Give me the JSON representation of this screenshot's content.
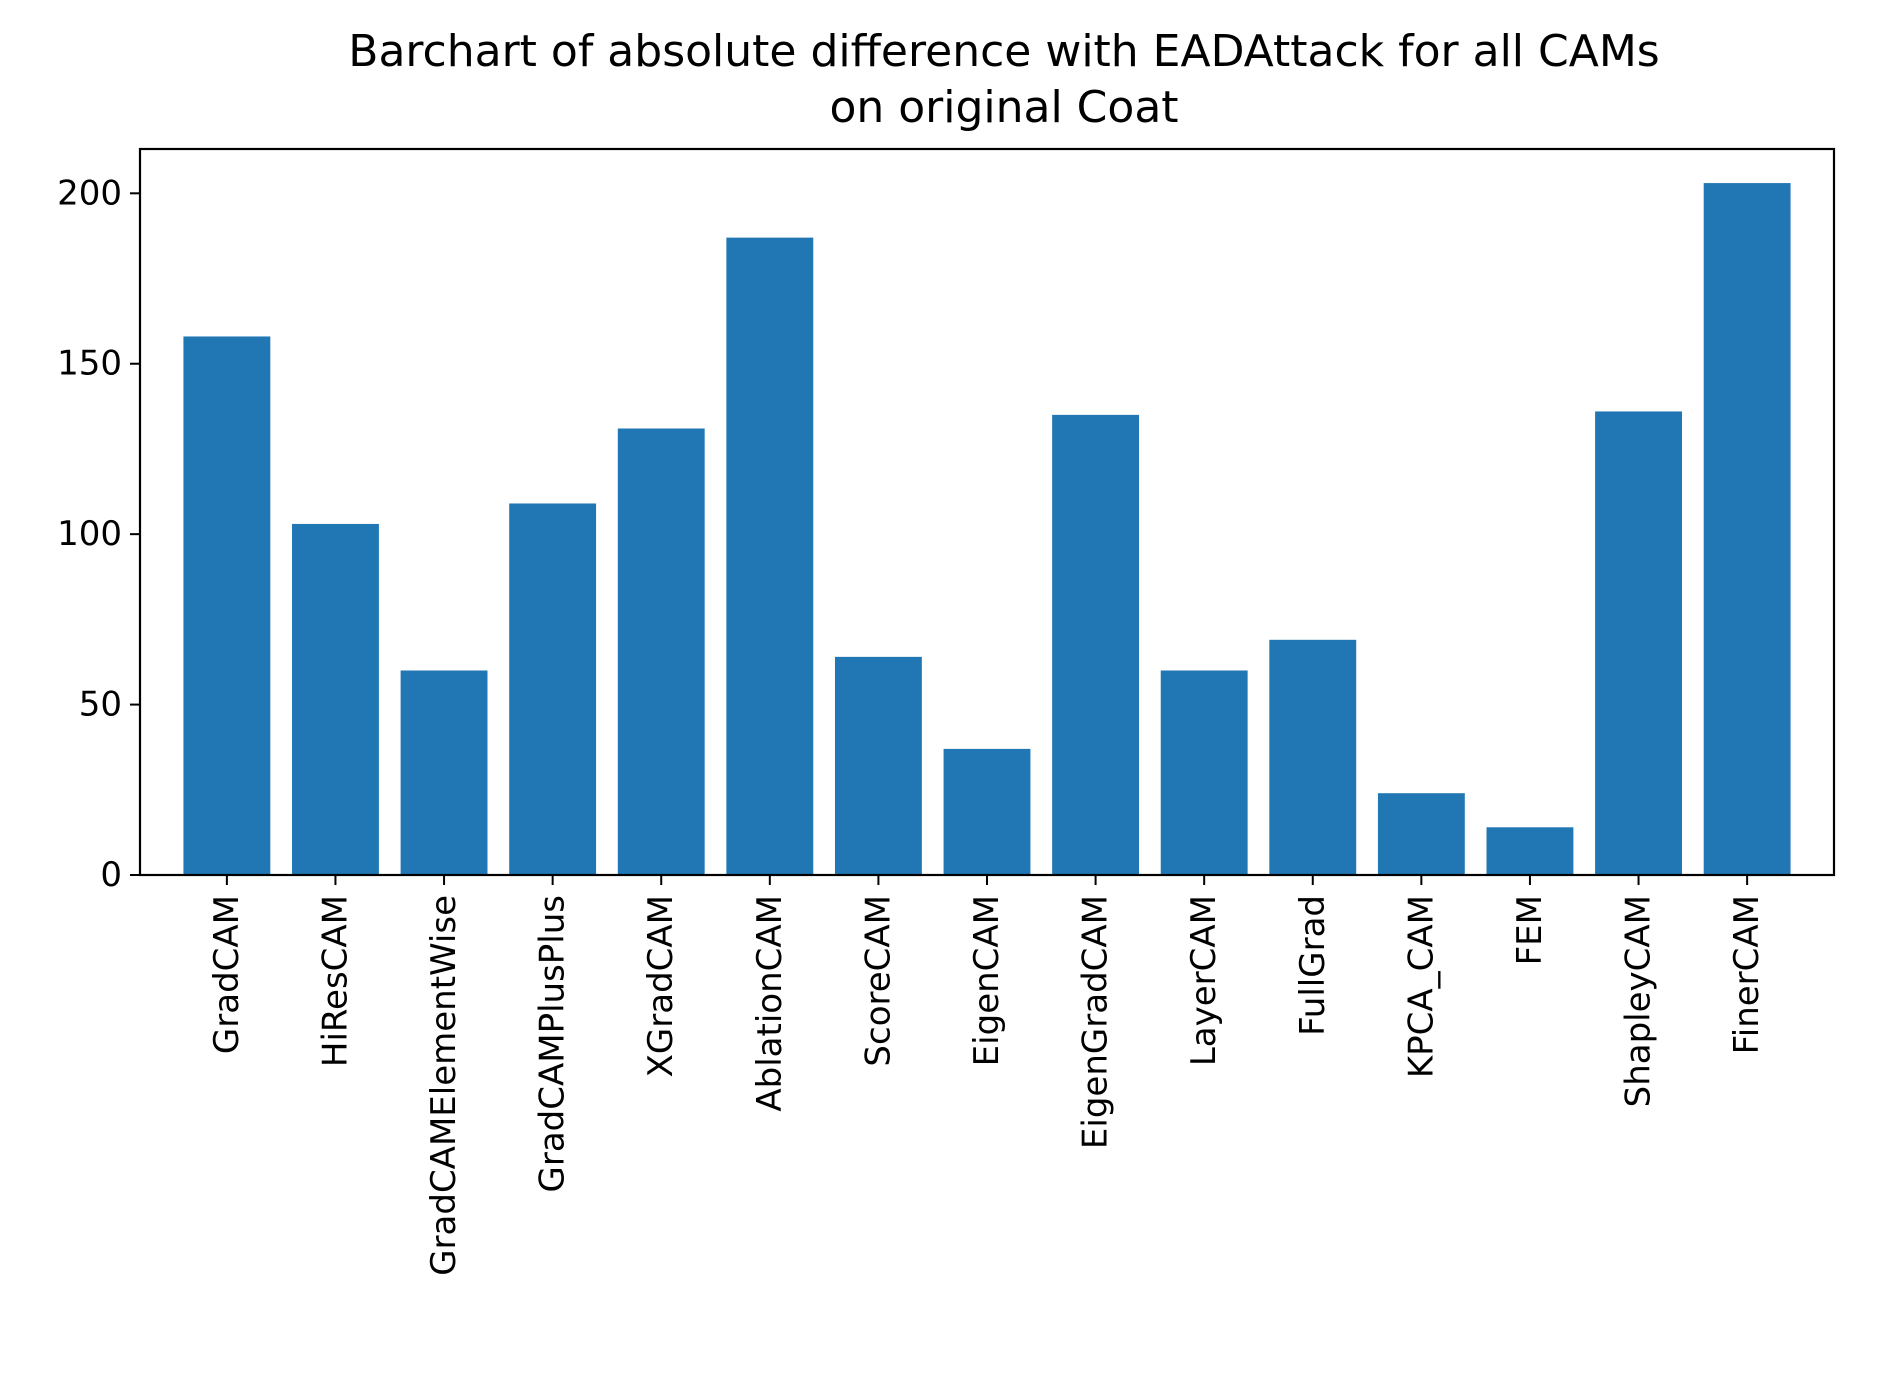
{
  "chart_data": {
    "type": "bar",
    "title_lines": [
      "Barchart of absolute difference with EADAttack for all CAMs",
      "on original Coat"
    ],
    "xlabel": "",
    "ylabel": "",
    "categories": [
      "GradCAM",
      "HiResCAM",
      "GradCAMElementWise",
      "GradCAMPlusPlus",
      "XGradCAM",
      "AblationCAM",
      "ScoreCAM",
      "EigenCAM",
      "EigenGradCAM",
      "LayerCAM",
      "FullGrad",
      "KPCA_CAM",
      "FEM",
      "ShapleyCAM",
      "FinerCAM"
    ],
    "values": [
      158,
      103,
      60,
      109,
      131,
      187,
      64,
      37,
      135,
      60,
      69,
      24,
      14,
      136,
      203
    ],
    "ylim": [
      0,
      213
    ],
    "yticks": [
      0,
      50,
      100,
      150,
      200
    ],
    "grid": false,
    "legend": "none",
    "bar_color": "#2077b4"
  }
}
